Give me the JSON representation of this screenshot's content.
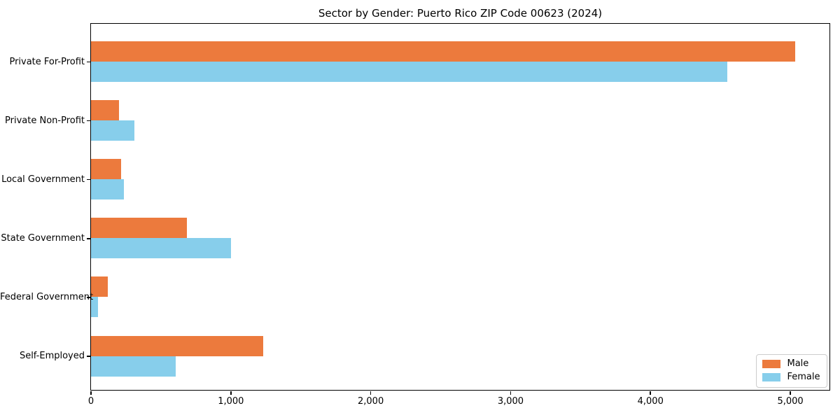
{
  "chart_data": {
    "type": "bar",
    "orientation": "horizontal",
    "title": "Sector by Gender: Puerto Rico ZIP Code 00623 (2024)",
    "categories": [
      "Private For-Profit",
      "Private Non-Profit",
      "Local Government",
      "State Government",
      "Federal Government",
      "Self-Employed"
    ],
    "series": [
      {
        "name": "Male",
        "color": "#EC7A3D",
        "values": [
          5035,
          205,
          220,
          690,
          125,
          1235
        ]
      },
      {
        "name": "Female",
        "color": "#87CEEB",
        "values": [
          4550,
          315,
          240,
          1005,
          55,
          610
        ]
      }
    ],
    "xlim": [
      0,
      5280
    ],
    "x_ticks": [
      0,
      1000,
      2000,
      3000,
      4000,
      5000
    ],
    "x_tick_labels": [
      "0",
      "1,000",
      "2,000",
      "3,000",
      "4,000",
      "5,000"
    ],
    "legend_position": "lower right",
    "grid": false,
    "axis_color": "#000000",
    "background_color": "#ffffff"
  }
}
